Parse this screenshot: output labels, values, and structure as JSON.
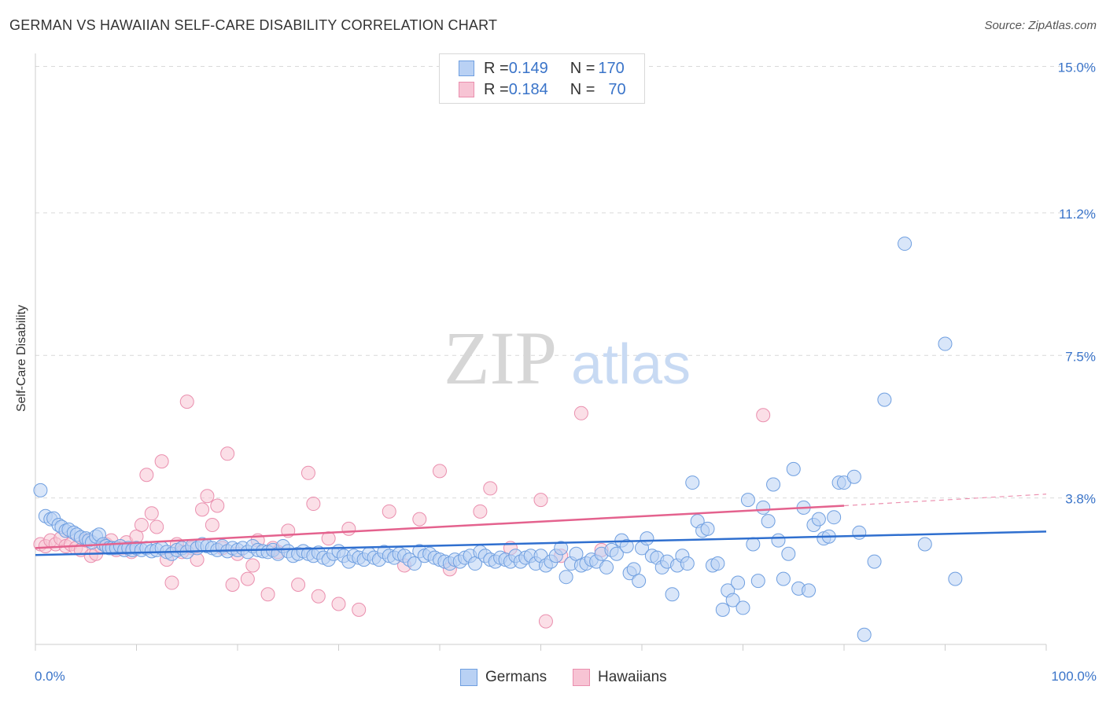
{
  "title": "GERMAN VS HAWAIIAN SELF-CARE DISABILITY CORRELATION CHART",
  "source": "Source: ZipAtlas.com",
  "watermark": {
    "zip": "ZIP",
    "atlas": "atlas"
  },
  "legend": {
    "rows": [
      {
        "r_label": "R = ",
        "r_value": "0.149",
        "n_label": "N = ",
        "n_value": "170"
      },
      {
        "r_label": "R = ",
        "r_value": "0.184",
        "n_label": "N = ",
        "n_value": "70"
      }
    ]
  },
  "bottom_legend": [
    "Germans",
    "Hawaiians"
  ],
  "colors": {
    "german_fill": "#b9d1f4",
    "german_stroke": "#6f9fe0",
    "german_line": "#2f6fcf",
    "hawaiian_fill": "#f7c4d4",
    "hawaiian_stroke": "#ea8fae",
    "hawaiian_line": "#e4628e",
    "tick_text": "#3a74c9",
    "grid": "#d9d9d9"
  },
  "chart_data": {
    "type": "scatter",
    "title": "GERMAN VS HAWAIIAN SELF-CARE DISABILITY CORRELATION CHART",
    "xlabel": "",
    "ylabel": "Self-Care Disability",
    "xlim": [
      0,
      100
    ],
    "ylim": [
      0,
      15.5
    ],
    "y_ticks": [
      3.8,
      7.5,
      11.2,
      15.0
    ],
    "y_tick_labels": [
      "3.8%",
      "7.5%",
      "11.2%",
      "15.0%"
    ],
    "x_tick_labels": [
      "0.0%",
      "100.0%"
    ],
    "grid": true,
    "legend_position": "top-center",
    "series": [
      {
        "name": "Germans",
        "trend": {
          "x": [
            0,
            100
          ],
          "y": [
            2.32,
            2.93
          ]
        },
        "points": [
          [
            0.5,
            4.0
          ],
          [
            1.0,
            3.33
          ],
          [
            1.5,
            3.25
          ],
          [
            1.8,
            3.27
          ],
          [
            2.3,
            3.1
          ],
          [
            2.6,
            3.05
          ],
          [
            3.0,
            2.95
          ],
          [
            3.3,
            2.98
          ],
          [
            3.8,
            2.9
          ],
          [
            4.1,
            2.85
          ],
          [
            4.5,
            2.78
          ],
          [
            5.0,
            2.75
          ],
          [
            5.3,
            2.7
          ],
          [
            5.6,
            2.65
          ],
          [
            6.0,
            2.8
          ],
          [
            6.3,
            2.85
          ],
          [
            6.7,
            2.6
          ],
          [
            7.0,
            2.55
          ],
          [
            7.3,
            2.5
          ],
          [
            7.6,
            2.5
          ],
          [
            8.0,
            2.5
          ],
          [
            8.4,
            2.55
          ],
          [
            8.8,
            2.45
          ],
          [
            9.2,
            2.5
          ],
          [
            9.6,
            2.45
          ],
          [
            10.0,
            2.5
          ],
          [
            10.5,
            2.45
          ],
          [
            11.0,
            2.5
          ],
          [
            11.5,
            2.42
          ],
          [
            12.0,
            2.45
          ],
          [
            12.5,
            2.5
          ],
          [
            13.0,
            2.4
          ],
          [
            13.5,
            2.35
          ],
          [
            14.0,
            2.45
          ],
          [
            14.5,
            2.5
          ],
          [
            15.0,
            2.4
          ],
          [
            15.5,
            2.55
          ],
          [
            16.0,
            2.5
          ],
          [
            16.5,
            2.6
          ],
          [
            17.0,
            2.55
          ],
          [
            17.5,
            2.5
          ],
          [
            18.0,
            2.45
          ],
          [
            18.5,
            2.55
          ],
          [
            19.0,
            2.42
          ],
          [
            19.5,
            2.5
          ],
          [
            20.0,
            2.45
          ],
          [
            20.5,
            2.5
          ],
          [
            21.0,
            2.4
          ],
          [
            21.5,
            2.55
          ],
          [
            22.0,
            2.45
          ],
          [
            22.5,
            2.42
          ],
          [
            23.0,
            2.4
          ],
          [
            23.5,
            2.45
          ],
          [
            24.0,
            2.35
          ],
          [
            24.5,
            2.55
          ],
          [
            25.0,
            2.42
          ],
          [
            25.5,
            2.3
          ],
          [
            26.0,
            2.35
          ],
          [
            26.5,
            2.42
          ],
          [
            27.0,
            2.35
          ],
          [
            27.5,
            2.3
          ],
          [
            28.0,
            2.38
          ],
          [
            28.5,
            2.25
          ],
          [
            29.0,
            2.2
          ],
          [
            29.5,
            2.35
          ],
          [
            30.0,
            2.42
          ],
          [
            30.5,
            2.3
          ],
          [
            31.0,
            2.15
          ],
          [
            31.5,
            2.3
          ],
          [
            32.0,
            2.25
          ],
          [
            32.5,
            2.2
          ],
          [
            33.0,
            2.35
          ],
          [
            33.5,
            2.25
          ],
          [
            34.0,
            2.2
          ],
          [
            34.5,
            2.4
          ],
          [
            35.0,
            2.3
          ],
          [
            35.5,
            2.25
          ],
          [
            36.0,
            2.35
          ],
          [
            36.5,
            2.3
          ],
          [
            37.0,
            2.2
          ],
          [
            37.5,
            2.1
          ],
          [
            38.0,
            2.42
          ],
          [
            38.5,
            2.3
          ],
          [
            39.0,
            2.35
          ],
          [
            39.5,
            2.25
          ],
          [
            40.0,
            2.2
          ],
          [
            40.5,
            2.15
          ],
          [
            41.0,
            2.1
          ],
          [
            41.5,
            2.2
          ],
          [
            42.0,
            2.15
          ],
          [
            42.5,
            2.25
          ],
          [
            43.0,
            2.3
          ],
          [
            43.5,
            2.1
          ],
          [
            44.0,
            2.4
          ],
          [
            44.5,
            2.3
          ],
          [
            45.0,
            2.2
          ],
          [
            45.5,
            2.15
          ],
          [
            46.0,
            2.25
          ],
          [
            46.5,
            2.2
          ],
          [
            47.0,
            2.15
          ],
          [
            47.5,
            2.3
          ],
          [
            48.0,
            2.15
          ],
          [
            48.5,
            2.25
          ],
          [
            49.0,
            2.3
          ],
          [
            49.5,
            2.1
          ],
          [
            50.0,
            2.3
          ],
          [
            50.5,
            2.05
          ],
          [
            51.0,
            2.15
          ],
          [
            51.5,
            2.3
          ],
          [
            52.0,
            2.5
          ],
          [
            52.5,
            1.75
          ],
          [
            53.0,
            2.1
          ],
          [
            53.5,
            2.35
          ],
          [
            54.0,
            2.05
          ],
          [
            54.5,
            2.1
          ],
          [
            55.0,
            2.2
          ],
          [
            55.5,
            2.15
          ],
          [
            56.0,
            2.35
          ],
          [
            56.5,
            2.0
          ],
          [
            57.0,
            2.45
          ],
          [
            57.5,
            2.35
          ],
          [
            58.0,
            2.7
          ],
          [
            58.5,
            2.55
          ],
          [
            58.8,
            1.85
          ],
          [
            59.2,
            1.95
          ],
          [
            59.7,
            1.65
          ],
          [
            60.0,
            2.5
          ],
          [
            60.5,
            2.75
          ],
          [
            61.0,
            2.3
          ],
          [
            61.5,
            2.25
          ],
          [
            62.0,
            2.0
          ],
          [
            62.5,
            2.15
          ],
          [
            63.0,
            1.3
          ],
          [
            63.5,
            2.05
          ],
          [
            64.0,
            2.3
          ],
          [
            64.5,
            2.1
          ],
          [
            65.0,
            4.2
          ],
          [
            65.5,
            3.2
          ],
          [
            66.0,
            2.95
          ],
          [
            66.5,
            3.0
          ],
          [
            67.0,
            2.05
          ],
          [
            67.5,
            2.1
          ],
          [
            68.0,
            0.9
          ],
          [
            68.5,
            1.4
          ],
          [
            69.0,
            1.15
          ],
          [
            69.5,
            1.6
          ],
          [
            70.0,
            0.95
          ],
          [
            70.5,
            3.75
          ],
          [
            71.0,
            2.6
          ],
          [
            71.5,
            1.65
          ],
          [
            72.0,
            3.55
          ],
          [
            72.5,
            3.2
          ],
          [
            73.0,
            4.15
          ],
          [
            73.5,
            2.7
          ],
          [
            74.0,
            1.7
          ],
          [
            74.5,
            2.35
          ],
          [
            75.0,
            4.55
          ],
          [
            75.5,
            1.45
          ],
          [
            76.0,
            3.55
          ],
          [
            76.5,
            1.4
          ],
          [
            77.0,
            3.1
          ],
          [
            77.5,
            3.25
          ],
          [
            78.0,
            2.75
          ],
          [
            78.5,
            2.8
          ],
          [
            79.0,
            3.3
          ],
          [
            79.5,
            4.2
          ],
          [
            80.0,
            4.2
          ],
          [
            81.0,
            4.35
          ],
          [
            81.5,
            2.9
          ],
          [
            82.0,
            0.25
          ],
          [
            83.0,
            2.15
          ],
          [
            84.0,
            6.35
          ],
          [
            86.0,
            10.4
          ],
          [
            88.0,
            2.6
          ],
          [
            90.0,
            7.8
          ],
          [
            91.0,
            1.7
          ]
        ]
      },
      {
        "name": "Hawaiians",
        "trend": {
          "x": [
            0,
            80
          ],
          "y": [
            2.5,
            3.6
          ],
          "dashed_extension": {
            "x": [
              80,
              100
            ],
            "y": [
              3.6,
              3.9
            ]
          }
        },
        "points": [
          [
            0.5,
            2.6
          ],
          [
            1.0,
            2.55
          ],
          [
            1.5,
            2.7
          ],
          [
            2.0,
            2.6
          ],
          [
            2.5,
            2.75
          ],
          [
            3.0,
            2.55
          ],
          [
            3.5,
            2.6
          ],
          [
            4.0,
            2.5
          ],
          [
            4.5,
            2.45
          ],
          [
            5.0,
            2.7
          ],
          [
            5.5,
            2.3
          ],
          [
            6.0,
            2.35
          ],
          [
            6.5,
            2.55
          ],
          [
            7.0,
            2.6
          ],
          [
            7.5,
            2.7
          ],
          [
            8.0,
            2.45
          ],
          [
            8.5,
            2.5
          ],
          [
            9.0,
            2.65
          ],
          [
            9.5,
            2.4
          ],
          [
            10.0,
            2.8
          ],
          [
            10.5,
            3.1
          ],
          [
            11.0,
            4.4
          ],
          [
            11.5,
            3.4
          ],
          [
            12.0,
            3.05
          ],
          [
            12.5,
            4.75
          ],
          [
            13.0,
            2.2
          ],
          [
            13.5,
            1.6
          ],
          [
            14.0,
            2.6
          ],
          [
            14.5,
            2.4
          ],
          [
            15.0,
            6.3
          ],
          [
            15.5,
            2.5
          ],
          [
            16.0,
            2.2
          ],
          [
            16.5,
            3.5
          ],
          [
            17.0,
            3.85
          ],
          [
            17.5,
            3.1
          ],
          [
            18.0,
            3.6
          ],
          [
            18.5,
            2.5
          ],
          [
            19.0,
            4.95
          ],
          [
            19.5,
            1.55
          ],
          [
            20.0,
            2.35
          ],
          [
            21.0,
            1.7
          ],
          [
            21.5,
            2.05
          ],
          [
            22.0,
            2.7
          ],
          [
            23.0,
            1.3
          ],
          [
            23.5,
            2.5
          ],
          [
            24.0,
            2.4
          ],
          [
            25.0,
            2.95
          ],
          [
            26.0,
            1.55
          ],
          [
            27.0,
            4.45
          ],
          [
            27.5,
            3.65
          ],
          [
            28.0,
            1.25
          ],
          [
            29.0,
            2.75
          ],
          [
            30.0,
            1.05
          ],
          [
            31.0,
            3.0
          ],
          [
            32.0,
            0.9
          ],
          [
            35.0,
            3.45
          ],
          [
            36.5,
            2.05
          ],
          [
            38.0,
            3.25
          ],
          [
            40.0,
            4.5
          ],
          [
            41.0,
            1.95
          ],
          [
            44.0,
            3.45
          ],
          [
            45.0,
            4.05
          ],
          [
            47.0,
            2.5
          ],
          [
            50.5,
            0.6
          ],
          [
            50.0,
            3.75
          ],
          [
            52.0,
            2.3
          ],
          [
            54.0,
            6.0
          ],
          [
            56.0,
            2.45
          ],
          [
            72.0,
            5.95
          ]
        ]
      }
    ]
  }
}
